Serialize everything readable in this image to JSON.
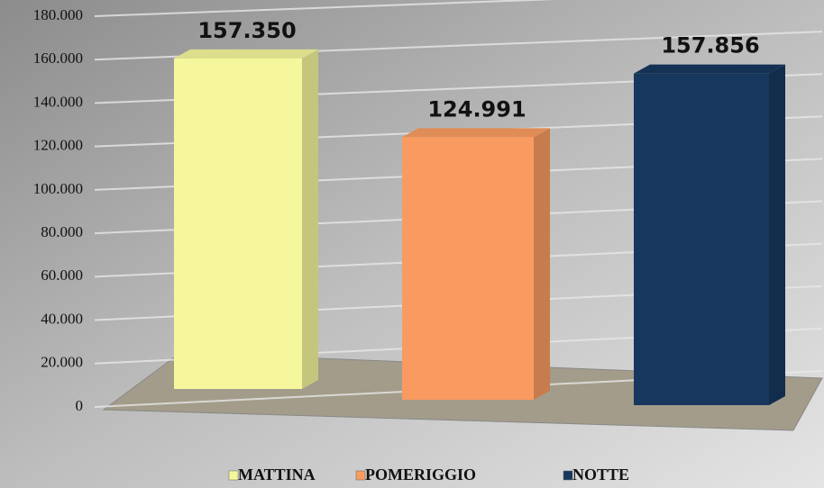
{
  "chart_data": {
    "type": "bar",
    "series": [
      {
        "name": "MATTINA",
        "color": "#f6f79c",
        "values": [
          157350
        ],
        "value_labels": [
          "157.350"
        ]
      },
      {
        "name": "POMERIGGIO",
        "color": "#f99b60",
        "values": [
          124991
        ],
        "value_labels": [
          "124.991"
        ]
      },
      {
        "name": "NOTTE",
        "color": "#17375e",
        "values": [
          157856
        ],
        "value_labels": [
          "157.856"
        ]
      }
    ],
    "ylim": [
      0,
      180000
    ],
    "yticks": [
      0,
      {
        "value": 20000,
        "label": "20.000"
      },
      {
        "value": 40000,
        "label": "40.000"
      },
      {
        "value": 60000,
        "label": "60.000"
      },
      {
        "value": 80000,
        "label": "80.000"
      },
      {
        "value": 100000,
        "label": "100.000"
      },
      {
        "value": 120000,
        "label": "120.000"
      },
      {
        "value": 140000,
        "label": "140.000"
      },
      {
        "value": 160000,
        "label": "160.000"
      },
      {
        "value": 180000,
        "label": "180.000"
      }
    ],
    "grid": true,
    "legend": "bottom"
  }
}
